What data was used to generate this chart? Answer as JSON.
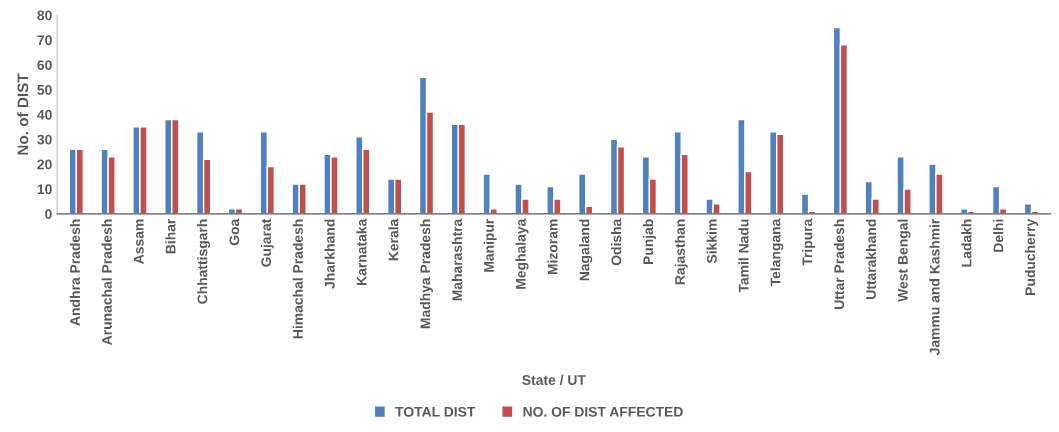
{
  "chart_data": {
    "type": "bar",
    "categories": [
      "Andhra Pradesh",
      "Arunachal Pradesh",
      "Assam",
      "Bihar",
      "Chhattisgarh",
      "Goa",
      "Gujarat",
      "Himachal Pradesh",
      "Jharkhand",
      "Karnataka",
      "Kerala",
      "Madhya Pradesh",
      "Maharashtra",
      "Manipur",
      "Meghalaya",
      "Mizoram",
      "Nagaland",
      "Odisha",
      "Punjab",
      "Rajasthan",
      "Sikkim",
      "Tamil Nadu",
      "Telangana",
      "Tripura",
      "Uttar Pradesh",
      "Uttarakhand",
      "West Bengal",
      "Jammu and Kashmir",
      "Ladakh",
      "Delhi",
      "Puducherry"
    ],
    "series": [
      {
        "name": "TOTAL DIST",
        "color": "#4f81bd",
        "values": [
          26,
          26,
          35,
          38,
          33,
          2,
          33,
          12,
          24,
          31,
          14,
          55,
          36,
          16,
          12,
          11,
          16,
          30,
          23,
          33,
          6,
          38,
          33,
          8,
          75,
          13,
          23,
          20,
          2,
          11,
          4
        ]
      },
      {
        "name": "NO. OF DIST AFFECTED",
        "color": "#c0504d",
        "values": [
          26,
          23,
          35,
          38,
          22,
          2,
          19,
          12,
          23,
          26,
          14,
          41,
          36,
          2,
          6,
          6,
          3,
          27,
          14,
          24,
          4,
          17,
          32,
          1,
          68,
          6,
          10,
          16,
          1,
          2,
          1
        ]
      }
    ],
    "xlabel": "State / UT",
    "ylabel": "No. of DIST",
    "ylim": [
      0,
      80
    ],
    "yticks": [
      0,
      10,
      20,
      30,
      40,
      50,
      60,
      70,
      80
    ],
    "grid": false,
    "legend": "bottom"
  }
}
